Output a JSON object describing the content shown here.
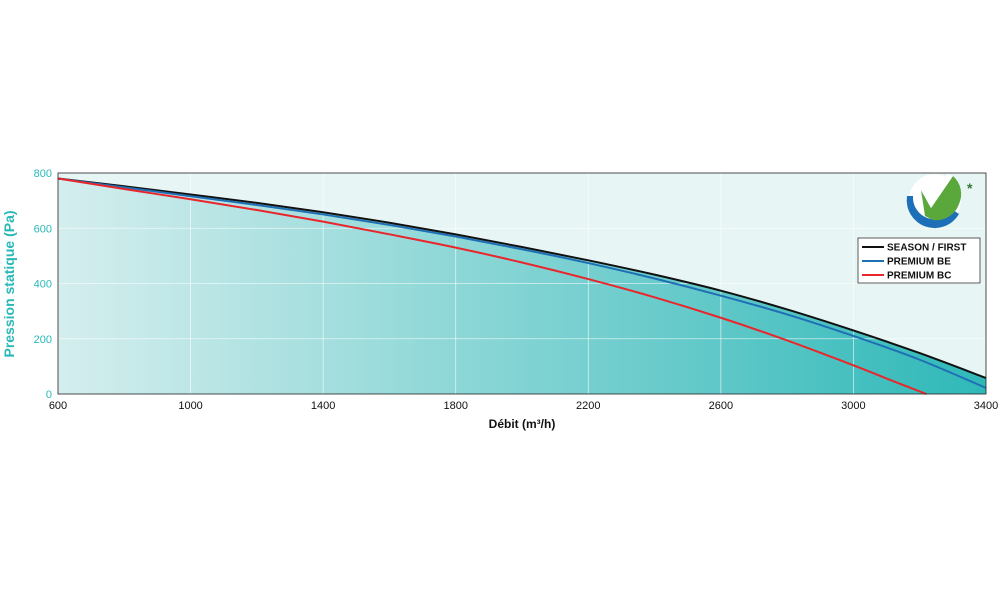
{
  "chart_data": {
    "type": "area",
    "xlabel": "Débit (m³/h)",
    "ylabel": "Pression statique (Pa)",
    "xlim": [
      600,
      3400
    ],
    "ylim": [
      0,
      800
    ],
    "xticks": [
      600,
      1000,
      1400,
      1800,
      2200,
      2600,
      3000,
      3400
    ],
    "yticks": [
      0,
      200,
      400,
      600,
      800
    ],
    "grid": true,
    "legend_position": "top-right",
    "series": [
      {
        "name": "SEASON / FIRST",
        "color": "#111111",
        "x": [
          600,
          800,
          1000,
          1200,
          1400,
          1600,
          1800,
          2000,
          2200,
          2400,
          2600,
          2800,
          3000,
          3200,
          3400
        ],
        "y": [
          780,
          752,
          722,
          692,
          658,
          620,
          578,
          532,
          484,
          432,
          374,
          306,
          230,
          148,
          58
        ]
      },
      {
        "name": "PREMIUM BE",
        "color": "#1f6fb5",
        "x": [
          600,
          800,
          1000,
          1200,
          1400,
          1600,
          1800,
          2000,
          2200,
          2400,
          2600,
          2800,
          3000,
          3200,
          3400
        ],
        "y": [
          780,
          748,
          716,
          684,
          650,
          612,
          570,
          524,
          474,
          418,
          356,
          288,
          210,
          124,
          22
        ]
      },
      {
        "name": "PREMIUM BC",
        "color": "#e8262b",
        "x": [
          600,
          800,
          1000,
          1200,
          1400,
          1600,
          1800,
          2000,
          2200,
          2400,
          2600,
          2800,
          3000,
          3100,
          3220
        ],
        "y": [
          780,
          742,
          705,
          666,
          624,
          578,
          530,
          476,
          416,
          350,
          276,
          194,
          104,
          56,
          0
        ]
      }
    ]
  },
  "logo": {
    "name": "check-logo",
    "asterisk": "*",
    "colors": [
      "#1d70b8",
      "#5aa83c",
      "#2e7d32"
    ]
  },
  "colors": {
    "plot_background_left": "#dff0f0",
    "plot_background_right": "#eef6f6",
    "fill_left": "#d5eeee",
    "fill_right": "#2fb8b8",
    "axis_accent": "#28b8b8"
  }
}
